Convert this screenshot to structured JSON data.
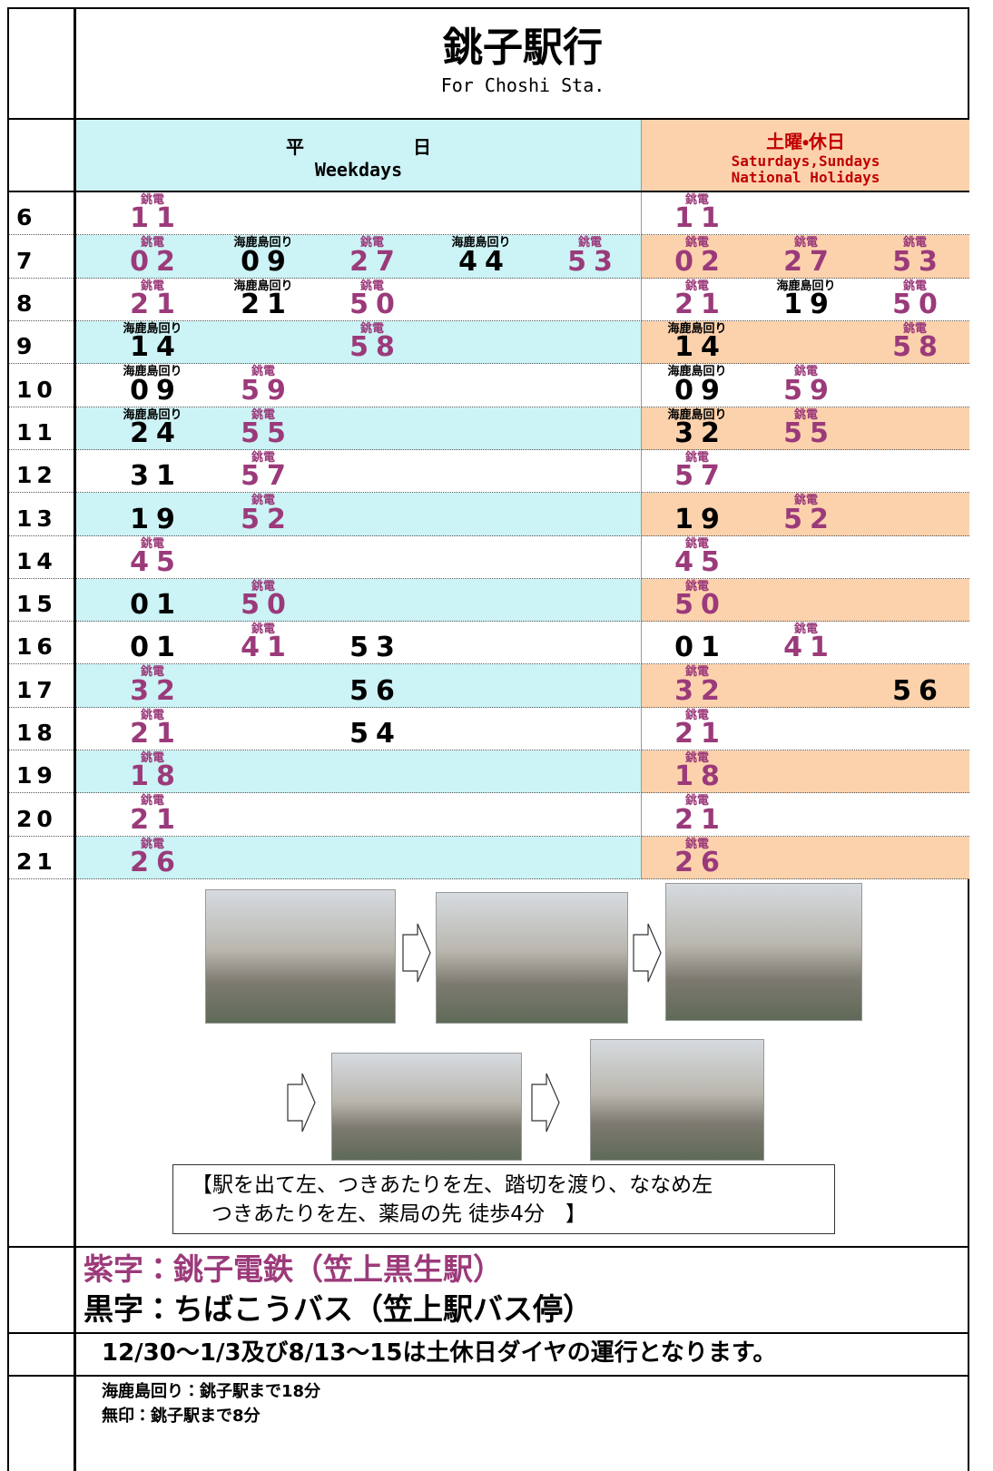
{
  "title": "銚子駅行",
  "subtitle": "For Choshi Sta.",
  "weekday_header": {
    "jp": "平　　　　　　日",
    "en": "Weekdays"
  },
  "holiday_header": {
    "jp": "土曜・休日",
    "en1": "Saturdays,Sundays",
    "en2": "National Holidays"
  },
  "rows": [
    {
      "hour": "6",
      "weekday": [
        {
          "min": "11",
          "note": "銚電",
          "color": "#9b3a7a"
        },
        null,
        null,
        null,
        null
      ],
      "holiday": [
        {
          "min": "11",
          "note": "銚電",
          "color": "#9b3a7a"
        },
        null,
        null
      ]
    },
    {
      "hour": "7",
      "weekday": [
        {
          "min": "02",
          "note": "銚電",
          "color": "#9b3a7a"
        },
        {
          "min": "09",
          "note": "海鹿島回り",
          "color": "#000000"
        },
        {
          "min": "27",
          "note": "銚電",
          "color": "#9b3a7a"
        },
        {
          "min": "44",
          "note": "海鹿島回り",
          "color": "#000000"
        },
        {
          "min": "53",
          "note": "銚電",
          "color": "#9b3a7a"
        }
      ],
      "holiday": [
        {
          "min": "02",
          "note": "銚電",
          "color": "#9b3a7a"
        },
        {
          "min": "27",
          "note": "銚電",
          "color": "#9b3a7a"
        },
        {
          "min": "53",
          "note": "銚電",
          "color": "#9b3a7a"
        }
      ]
    },
    {
      "hour": "8",
      "weekday": [
        {
          "min": "21",
          "note": "銚電",
          "color": "#9b3a7a"
        },
        {
          "min": "21",
          "note": "海鹿島回り",
          "color": "#000000"
        },
        {
          "min": "50",
          "note": "銚電",
          "color": "#9b3a7a"
        },
        null,
        null
      ],
      "holiday": [
        {
          "min": "21",
          "note": "銚電",
          "color": "#9b3a7a"
        },
        {
          "min": "19",
          "note": "海鹿島回り",
          "color": "#000000"
        },
        {
          "min": "50",
          "note": "銚電",
          "color": "#9b3a7a"
        }
      ]
    },
    {
      "hour": "9",
      "weekday": [
        {
          "min": "14",
          "note": "海鹿島回り",
          "color": "#000000"
        },
        null,
        {
          "min": "58",
          "note": "銚電",
          "color": "#9b3a7a"
        },
        null,
        null
      ],
      "holiday": [
        {
          "min": "14",
          "note": "海鹿島回り",
          "color": "#000000"
        },
        null,
        {
          "min": "58",
          "note": "銚電",
          "color": "#9b3a7a"
        }
      ]
    },
    {
      "hour": "10",
      "weekday": [
        {
          "min": "09",
          "note": "海鹿島回り",
          "color": "#000000"
        },
        {
          "min": "59",
          "note": "銚電",
          "color": "#9b3a7a"
        },
        null,
        null,
        null
      ],
      "holiday": [
        {
          "min": "09",
          "note": "海鹿島回り",
          "color": "#000000"
        },
        {
          "min": "59",
          "note": "銚電",
          "color": "#9b3a7a"
        },
        null
      ]
    },
    {
      "hour": "11",
      "weekday": [
        {
          "min": "24",
          "note": "海鹿島回り",
          "color": "#000000"
        },
        {
          "min": "55",
          "note": "銚電",
          "color": "#9b3a7a"
        },
        null,
        null,
        null
      ],
      "holiday": [
        {
          "min": "32",
          "note": "海鹿島回り",
          "color": "#000000"
        },
        {
          "min": "55",
          "note": "銚電",
          "color": "#9b3a7a"
        },
        null
      ]
    },
    {
      "hour": "12",
      "weekday": [
        {
          "min": "31",
          "color": "#000000"
        },
        {
          "min": "57",
          "note": "銚電",
          "color": "#9b3a7a"
        },
        null,
        null,
        null
      ],
      "holiday": [
        {
          "min": "57",
          "note": "銚電",
          "color": "#9b3a7a"
        },
        null,
        null
      ]
    },
    {
      "hour": "13",
      "weekday": [
        {
          "min": "19",
          "color": "#000000"
        },
        {
          "min": "52",
          "note": "銚電",
          "color": "#9b3a7a"
        },
        null,
        null,
        null
      ],
      "holiday": [
        {
          "min": "19",
          "color": "#000000"
        },
        {
          "min": "52",
          "note": "銚電",
          "color": "#9b3a7a"
        },
        null
      ]
    },
    {
      "hour": "14",
      "weekday": [
        {
          "min": "45",
          "note": "銚電",
          "color": "#9b3a7a"
        },
        null,
        null,
        null,
        null
      ],
      "holiday": [
        {
          "min": "45",
          "note": "銚電",
          "color": "#9b3a7a"
        },
        null,
        null
      ]
    },
    {
      "hour": "15",
      "weekday": [
        {
          "min": "01",
          "color": "#000000"
        },
        {
          "min": "50",
          "note": "銚電",
          "color": "#9b3a7a"
        },
        null,
        null,
        null
      ],
      "holiday": [
        {
          "min": "50",
          "note": "銚電",
          "color": "#9b3a7a"
        },
        null,
        null
      ]
    },
    {
      "hour": "16",
      "weekday": [
        {
          "min": "01",
          "color": "#000000"
        },
        {
          "min": "41",
          "note": "銚電",
          "color": "#9b3a7a"
        },
        {
          "min": "53",
          "color": "#000000"
        },
        null,
        null
      ],
      "holiday": [
        {
          "min": "01",
          "color": "#000000"
        },
        {
          "min": "41",
          "note": "銚電",
          "color": "#9b3a7a"
        },
        null
      ]
    },
    {
      "hour": "17",
      "weekday": [
        {
          "min": "32",
          "note": "銚電",
          "color": "#9b3a7a"
        },
        null,
        {
          "min": "56",
          "color": "#000000"
        },
        null,
        null
      ],
      "holiday": [
        {
          "min": "32",
          "note": "銚電",
          "color": "#9b3a7a"
        },
        null,
        {
          "min": "56",
          "color": "#000000"
        }
      ]
    },
    {
      "hour": "18",
      "weekday": [
        {
          "min": "21",
          "note": "銚電",
          "color": "#9b3a7a"
        },
        null,
        {
          "min": "54",
          "color": "#000000"
        },
        null,
        null
      ],
      "holiday": [
        {
          "min": "21",
          "note": "銚電",
          "color": "#9b3a7a"
        },
        null,
        null
      ]
    },
    {
      "hour": "19",
      "weekday": [
        {
          "min": "18",
          "note": "銚電",
          "color": "#9b3a7a"
        },
        null,
        null,
        null,
        null
      ],
      "holiday": [
        {
          "min": "18",
          "note": "銚電",
          "color": "#9b3a7a"
        },
        null,
        null
      ]
    },
    {
      "hour": "20",
      "weekday": [
        {
          "min": "21",
          "note": "銚電",
          "color": "#9b3a7a"
        },
        null,
        null,
        null,
        null
      ],
      "holiday": [
        {
          "min": "21",
          "note": "銚電",
          "color": "#9b3a7a"
        },
        null,
        null
      ]
    },
    {
      "hour": "21",
      "weekday": [
        {
          "min": "26",
          "note": "銚電",
          "color": "#9b3a7a"
        },
        null,
        null,
        null,
        null
      ],
      "holiday": [
        {
          "min": "26",
          "note": "銚電",
          "color": "#9b3a7a"
        },
        null,
        null
      ]
    }
  ],
  "directions": [
    "【駅を出て左、つきあたりを左、踏切を渡り、ななめ左",
    "つきあたりを左、薬局の先 徒歩4分　】"
  ],
  "legend": [
    {
      "text": "紫字：銚子電鉄（笠上黒生駅）",
      "color": "#9b3a7a"
    },
    {
      "text": "黒字：ちばこうバス（笠上駅バス停）",
      "color": "#000000"
    }
  ],
  "notice": "12/30～1/3及び8/13～15は土休日ダイヤの運行となります。",
  "footnotes": [
    "海鹿島回り：銚子駅まで18分",
    "無印：銚子駅まで8分"
  ]
}
